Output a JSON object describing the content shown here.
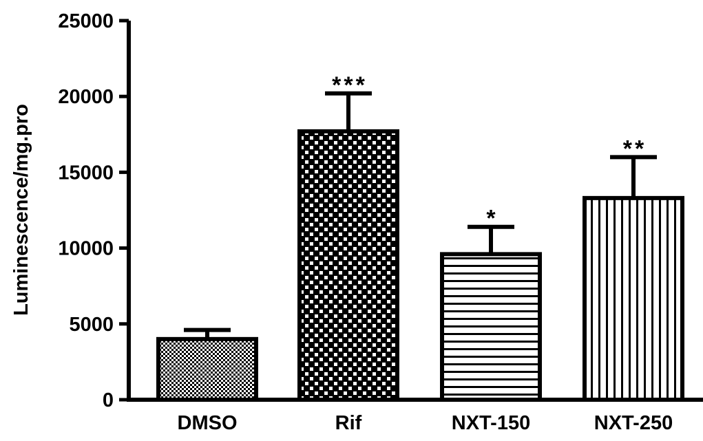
{
  "chart_data": {
    "type": "bar",
    "title": "",
    "xlabel": "",
    "ylabel": "Luminescence/mg.pro",
    "ylim": [
      0,
      25000
    ],
    "yticks": [
      0,
      5000,
      10000,
      15000,
      20000,
      25000
    ],
    "ytick_labels": [
      "0",
      "5000",
      "10000",
      "15000",
      "20000",
      "25000"
    ],
    "categories": [
      "DMSO",
      "Rif",
      "NXT-150",
      "NXT-250"
    ],
    "values": [
      4000,
      17700,
      9600,
      13300
    ],
    "errors": [
      600,
      2500,
      1800,
      2700
    ],
    "significance": [
      "",
      "***",
      "*",
      "**"
    ],
    "patterns": [
      "dense-dots",
      "checkerboard",
      "horizontal-lines",
      "vertical-lines"
    ],
    "grid": false,
    "legend": "none"
  }
}
